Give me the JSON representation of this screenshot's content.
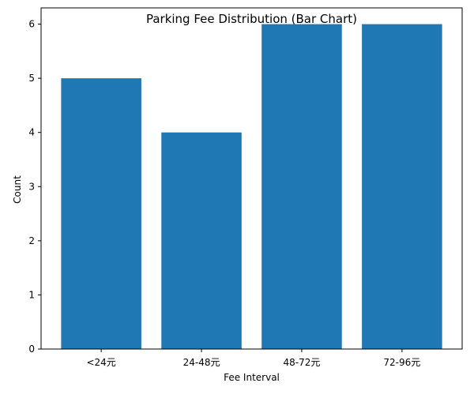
{
  "chart_data": {
    "type": "bar",
    "title": "Parking Fee Distribution (Bar Chart)",
    "xlabel": "Fee Interval",
    "ylabel": "Count",
    "categories": [
      "<24元",
      "24-48元",
      "48-72元",
      "72-96元"
    ],
    "values": [
      5,
      4,
      6,
      6
    ],
    "ylim": [
      0,
      6.3
    ],
    "yticks": [
      0,
      1,
      2,
      3,
      4,
      5,
      6
    ],
    "grid": false,
    "bar_color": "#1f77b4"
  }
}
